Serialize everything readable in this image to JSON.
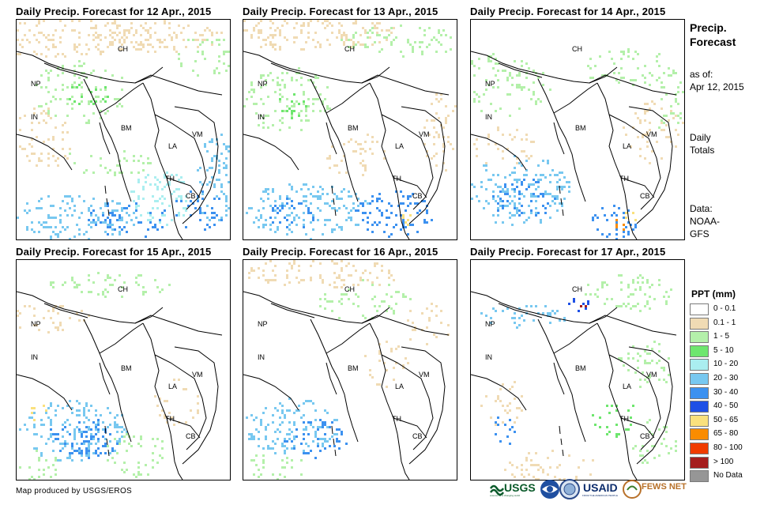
{
  "panels": [
    {
      "title": "Daily Precip. Forecast for 12 Apr., 2015"
    },
    {
      "title": "Daily Precip. Forecast for 13 Apr., 2015"
    },
    {
      "title": "Daily Precip. Forecast for 14 Apr., 2015"
    },
    {
      "title": "Daily Precip. Forecast for 15 Apr., 2015"
    },
    {
      "title": "Daily Precip. Forecast for 16 Apr., 2015"
    },
    {
      "title": "Daily Precip. Forecast for 17 Apr., 2015"
    }
  ],
  "map_labels": {
    "CH": "CH",
    "NP": "NP",
    "IN": "IN",
    "BM": "BM",
    "LA": "LA",
    "VM": "VM",
    "TH": "TH",
    "CB": "CB"
  },
  "side": {
    "title_line1": "Precip.",
    "title_line2": "Forecast",
    "asof_line1": "as of:",
    "asof_line2": "Apr 12, 2015",
    "totals_line1": "Daily",
    "totals_line2": "Totals",
    "data_line1": "Data:",
    "data_line2": "NOAA-",
    "data_line3": "GFS"
  },
  "legend": {
    "title": "PPT (mm)",
    "items": [
      {
        "label": "0 - 0.1",
        "color": "#ffffff"
      },
      {
        "label": "0.1 - 1",
        "color": "#f0dbb4"
      },
      {
        "label": "1 - 5",
        "color": "#b4f0aa"
      },
      {
        "label": "5 - 10",
        "color": "#6ee66e"
      },
      {
        "label": "10 - 20",
        "color": "#aaeef0"
      },
      {
        "label": "20 - 30",
        "color": "#78c8f0"
      },
      {
        "label": "30 - 40",
        "color": "#3c91f0"
      },
      {
        "label": "40 - 50",
        "color": "#1e50e6"
      },
      {
        "label": "50 - 65",
        "color": "#fae17d"
      },
      {
        "label": "65 - 80",
        "color": "#fa8c00"
      },
      {
        "label": "80 - 100",
        "color": "#f03c00"
      },
      {
        "label": "> 100",
        "color": "#a51e1e"
      },
      {
        "label": "No Data",
        "color": "#969696"
      }
    ]
  },
  "credit": "Map produced by USGS/EROS",
  "logos": {
    "usgs": "USGS",
    "usgs_tagline": "science for a changing world",
    "usaid": "USAID",
    "usaid_tagline": "FROM THE AMERICAN PEOPLE",
    "fewsnet": "FEWS NET"
  }
}
